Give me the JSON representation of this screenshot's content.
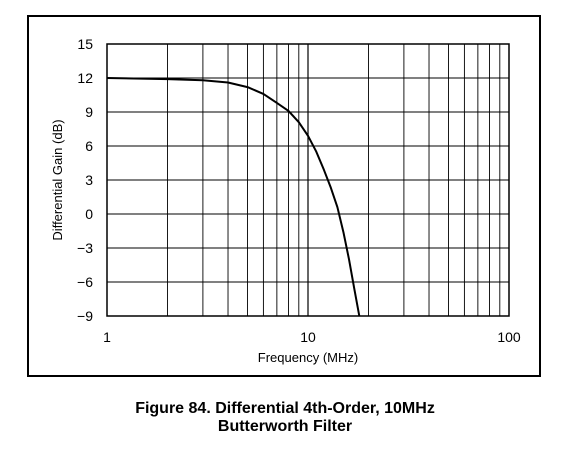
{
  "caption": {
    "line1": "Figure 84. Differential 4th-Order, 10MHz",
    "line2": "Butterworth Filter"
  },
  "chart_data": {
    "type": "line",
    "xlabel": "Frequency (MHz)",
    "ylabel": "Differential Gain (dB)",
    "x_scale": "log",
    "xlim": [
      1,
      100
    ],
    "ylim": [
      -9,
      15
    ],
    "x_ticks": [
      1,
      10,
      100
    ],
    "x_tick_labels": [
      "1",
      "10",
      "100"
    ],
    "y_ticks": [
      15,
      12,
      9,
      6,
      3,
      0,
      -3,
      -6,
      -9
    ],
    "y_tick_labels": [
      "15",
      "12",
      "9",
      "6",
      "3",
      "0",
      "−3",
      "−6",
      "−9"
    ],
    "grid": true,
    "series": [
      {
        "x": [
          1,
          2,
          3,
          4,
          5,
          6,
          7,
          8,
          9,
          10,
          11,
          12,
          13,
          14,
          15,
          16,
          17,
          18
        ],
        "y": [
          12.0,
          11.9,
          11.8,
          11.6,
          11.2,
          10.6,
          9.8,
          9.1,
          8.1,
          6.9,
          5.5,
          3.9,
          2.3,
          0.6,
          -1.6,
          -4.0,
          -6.6,
          -9.0
        ]
      }
    ]
  }
}
